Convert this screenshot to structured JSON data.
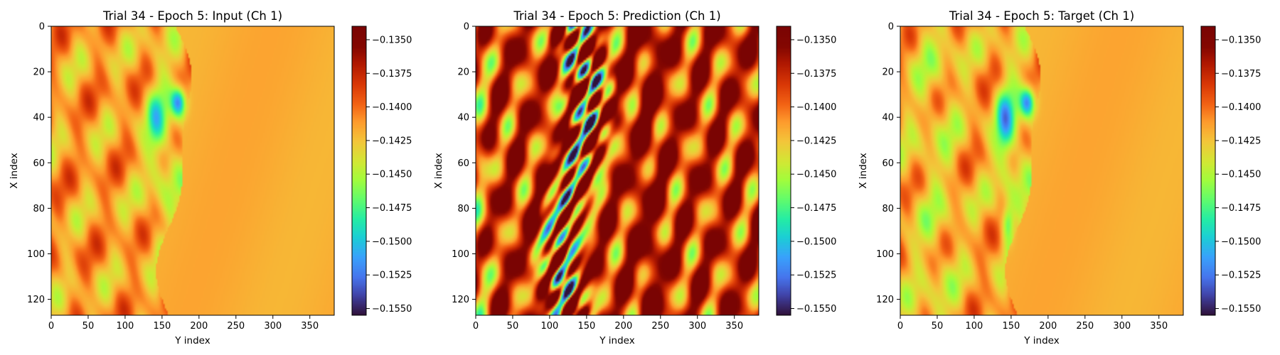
{
  "figure": {
    "panels": [
      {
        "title": "Trial 34 - Epoch 5: Input (Ch 1)",
        "variant": "input"
      },
      {
        "title": "Trial 34 - Epoch 5: Prediction (Ch 1)",
        "variant": "prediction"
      },
      {
        "title": "Trial 34 - Epoch 5: Target (Ch 1)",
        "variant": "target"
      }
    ]
  },
  "chart_data": [
    {
      "type": "heatmap",
      "title": "Trial 34 - Epoch 5: Input (Ch 1)",
      "xlabel": "Y index",
      "ylabel": "X index",
      "xlim": [
        0,
        383
      ],
      "ylim": [
        127,
        0
      ],
      "xticks": [
        "0",
        "50",
        "100",
        "150",
        "200",
        "250",
        "300",
        "350"
      ],
      "yticks": [
        "0",
        "20",
        "40",
        "60",
        "80",
        "100",
        "120"
      ],
      "colormap": "turbo",
      "colorbar_range": [
        -0.1555,
        -0.134
      ],
      "colorbar_ticks": [
        "−0.1350",
        "−0.1375",
        "−0.1400",
        "−0.1425",
        "−0.1450",
        "−0.1475",
        "−0.1500",
        "−0.1525",
        "−0.1550"
      ],
      "grid": false
    },
    {
      "type": "heatmap",
      "title": "Trial 34 - Epoch 5: Prediction (Ch 1)",
      "xlabel": "Y index",
      "ylabel": "X index",
      "xlim": [
        0,
        383
      ],
      "ylim": [
        127,
        0
      ],
      "xticks": [
        "0",
        "50",
        "100",
        "150",
        "200",
        "250",
        "300",
        "350"
      ],
      "yticks": [
        "0",
        "20",
        "40",
        "60",
        "80",
        "100",
        "120"
      ],
      "colormap": "turbo",
      "colorbar_range": [
        -0.1555,
        -0.134
      ],
      "colorbar_ticks": [
        "−0.1350",
        "−0.1375",
        "−0.1400",
        "−0.1425",
        "−0.1450",
        "−0.1475",
        "−0.1500",
        "−0.1525",
        "−0.1550"
      ],
      "grid": false
    },
    {
      "type": "heatmap",
      "title": "Trial 34 - Epoch 5: Target (Ch 1)",
      "xlabel": "Y index",
      "ylabel": "X index",
      "xlim": [
        0,
        383
      ],
      "ylim": [
        127,
        0
      ],
      "xticks": [
        "0",
        "50",
        "100",
        "150",
        "200",
        "250",
        "300",
        "350"
      ],
      "yticks": [
        "0",
        "20",
        "40",
        "60",
        "80",
        "100",
        "120"
      ],
      "colormap": "turbo",
      "colorbar_range": [
        -0.1555,
        -0.134
      ],
      "colorbar_ticks": [
        "−0.1350",
        "−0.1375",
        "−0.1400",
        "−0.1425",
        "−0.1450",
        "−0.1475",
        "−0.1500",
        "−0.1525",
        "−0.1550"
      ],
      "grid": false
    }
  ]
}
